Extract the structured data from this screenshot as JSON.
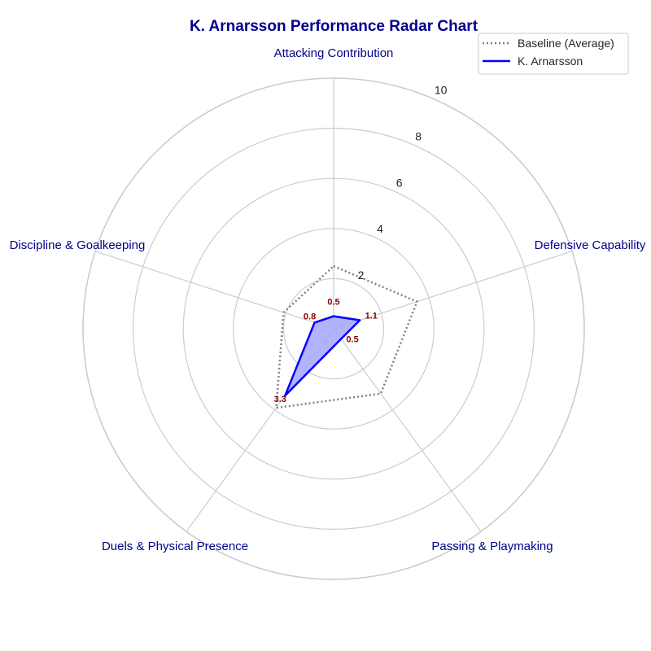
{
  "chart_data": {
    "type": "radar",
    "title": "K. Arnarsson Performance Radar Chart",
    "categories": [
      "Attacking Contribution",
      "Defensive Capability",
      "Passing & Playmaking",
      "Duels & Physical Presence",
      "Discipline & Goalkeeping"
    ],
    "rlim": [
      0,
      10
    ],
    "rticks": [
      2,
      4,
      6,
      8,
      10
    ],
    "series": [
      {
        "name": "Baseline (Average)",
        "values": [
          2.5,
          3.5,
          3.2,
          3.9,
          2.1
        ],
        "color": "#808080",
        "style": "dotted"
      },
      {
        "name": "K. Arnarsson",
        "values": [
          0.5,
          1.1,
          0.5,
          3.3,
          0.8
        ],
        "color": "#0000ff",
        "fill": "#aaaaff",
        "style": "solid"
      }
    ],
    "data_labels": [
      "0.5",
      "1.1",
      "0.5",
      "3.3",
      "0.8"
    ],
    "grid": true,
    "legend_position": "top-right"
  }
}
